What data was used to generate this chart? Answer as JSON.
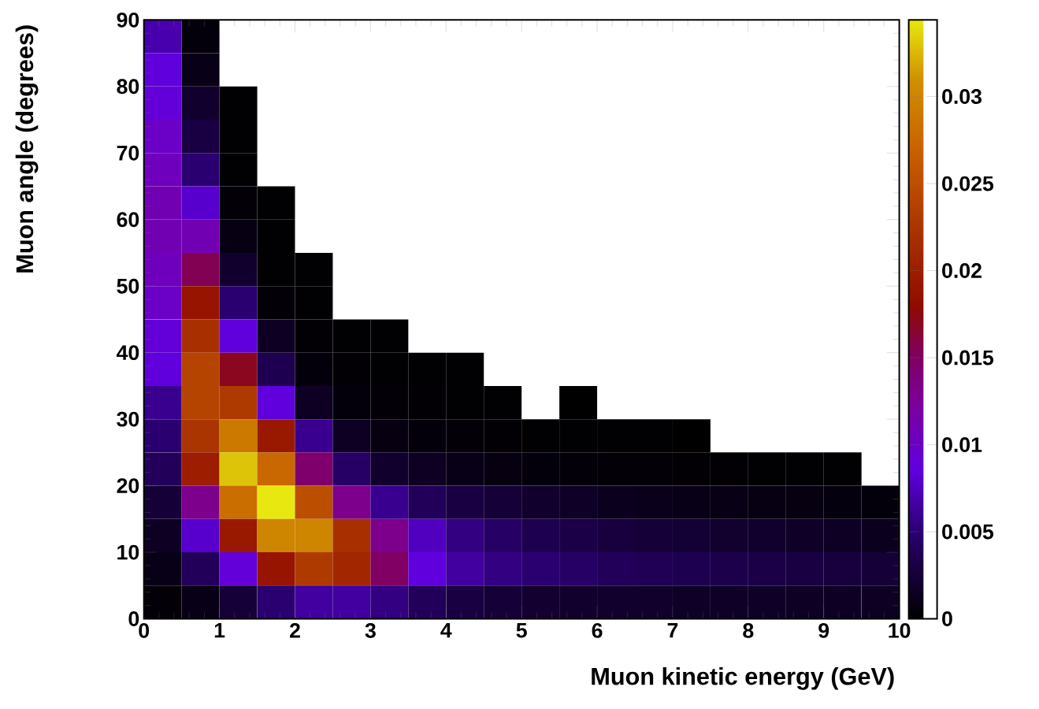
{
  "chart_data": {
    "type": "heatmap",
    "xlabel": "Muon kinetic energy (GeV)",
    "ylabel": "Muon angle (degrees)",
    "xlim": [
      0,
      10
    ],
    "xticks": [
      0,
      1,
      2,
      3,
      4,
      5,
      6,
      7,
      8,
      9,
      10
    ],
    "ylim": [
      0,
      90
    ],
    "yticks": [
      0,
      10,
      20,
      30,
      40,
      50,
      60,
      70,
      80,
      90
    ],
    "clim": [
      0,
      0.0344
    ],
    "cticks": [
      0,
      0.005,
      0.01,
      0.015,
      0.02,
      0.025,
      0.03
    ],
    "cells": [
      [
        0.007,
        0.0005,
        null,
        null,
        null,
        null,
        null,
        null,
        null,
        null,
        null,
        null,
        null,
        null,
        null,
        null,
        null,
        null,
        null,
        null
      ],
      [
        0.0085,
        0.001,
        null,
        null,
        null,
        null,
        null,
        null,
        null,
        null,
        null,
        null,
        null,
        null,
        null,
        null,
        null,
        null,
        null,
        null
      ],
      [
        0.009,
        0.002,
        0.0001,
        null,
        null,
        null,
        null,
        null,
        null,
        null,
        null,
        null,
        null,
        null,
        null,
        null,
        null,
        null,
        null,
        null
      ],
      [
        0.01,
        0.003,
        0.0001,
        null,
        null,
        null,
        null,
        null,
        null,
        null,
        null,
        null,
        null,
        null,
        null,
        null,
        null,
        null,
        null,
        null
      ],
      [
        0.0105,
        0.005,
        0.0001,
        null,
        null,
        null,
        null,
        null,
        null,
        null,
        null,
        null,
        null,
        null,
        null,
        null,
        null,
        null,
        null,
        null
      ],
      [
        0.011,
        0.008,
        0.0003,
        0.0001,
        null,
        null,
        null,
        null,
        null,
        null,
        null,
        null,
        null,
        null,
        null,
        null,
        null,
        null,
        null,
        null
      ],
      [
        0.011,
        0.011,
        0.0008,
        0.0001,
        null,
        null,
        null,
        null,
        null,
        null,
        null,
        null,
        null,
        null,
        null,
        null,
        null,
        null,
        null,
        null
      ],
      [
        0.0105,
        0.0155,
        0.002,
        0.0001,
        0.0001,
        null,
        null,
        null,
        null,
        null,
        null,
        null,
        null,
        null,
        null,
        null,
        null,
        null,
        null,
        null
      ],
      [
        0.01,
        0.019,
        0.005,
        0.0003,
        0.0001,
        null,
        null,
        null,
        null,
        null,
        null,
        null,
        null,
        null,
        null,
        null,
        null,
        null,
        null,
        null
      ],
      [
        0.009,
        0.022,
        0.0085,
        0.0015,
        0.0002,
        0.0001,
        0.0001,
        null,
        null,
        null,
        null,
        null,
        null,
        null,
        null,
        null,
        null,
        null,
        null,
        null
      ],
      [
        0.0085,
        0.024,
        0.017,
        0.0035,
        0.0005,
        0.0002,
        0.0001,
        0.0001,
        0.0001,
        null,
        null,
        null,
        null,
        null,
        null,
        null,
        null,
        null,
        null,
        null
      ],
      [
        0.006,
        0.024,
        0.023,
        0.0085,
        0.0015,
        0.0005,
        0.0003,
        0.0002,
        0.0001,
        0.0001,
        null,
        5e-05,
        null,
        null,
        null,
        null,
        null,
        null,
        null,
        null
      ],
      [
        0.005,
        0.0225,
        0.029,
        0.0195,
        0.006,
        0.0015,
        0.0007,
        0.0005,
        0.0003,
        0.0002,
        0.0001,
        0.0001,
        0.0001,
        0.0001,
        5e-05,
        null,
        null,
        null,
        null,
        null
      ],
      [
        0.004,
        0.02,
        0.033,
        0.0275,
        0.0145,
        0.0045,
        0.002,
        0.0015,
        0.001,
        0.0007,
        0.0005,
        0.0004,
        0.0003,
        0.0003,
        0.0002,
        0.0002,
        0.0001,
        0.0001,
        0.0001,
        null
      ],
      [
        0.0025,
        0.013,
        0.028,
        0.0344,
        0.025,
        0.013,
        0.006,
        0.004,
        0.003,
        0.0025,
        0.002,
        0.0017,
        0.0014,
        0.0012,
        0.001,
        0.0009,
        0.0008,
        0.0007,
        0.0006,
        0.0005
      ],
      [
        0.0015,
        0.008,
        0.0195,
        0.03,
        0.03,
        0.022,
        0.013,
        0.0075,
        0.0055,
        0.0045,
        0.0035,
        0.0032,
        0.0028,
        0.0025,
        0.0023,
        0.0021,
        0.002,
        0.0018,
        0.0016,
        0.0014
      ],
      [
        0.001,
        0.004,
        0.009,
        0.019,
        0.023,
        0.021,
        0.015,
        0.0085,
        0.0065,
        0.0055,
        0.005,
        0.0045,
        0.004,
        0.0038,
        0.0036,
        0.0034,
        0.0032,
        0.003,
        0.0028,
        0.0025
      ],
      [
        0.0003,
        0.001,
        0.0025,
        0.005,
        0.0065,
        0.0065,
        0.0055,
        0.004,
        0.003,
        0.0025,
        0.0022,
        0.002,
        0.002,
        0.0019,
        0.0018,
        0.0018,
        0.0017,
        0.0016,
        0.0016,
        0.0015
      ]
    ]
  }
}
